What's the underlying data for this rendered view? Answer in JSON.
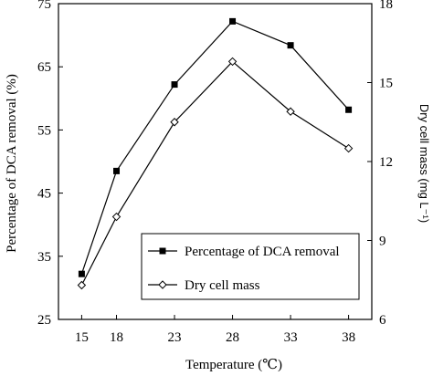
{
  "chart_data": {
    "type": "line",
    "x": [
      15,
      18,
      23,
      28,
      33,
      38
    ],
    "xlabel": "Temperature (℃)",
    "xticks": [
      "15",
      "18",
      "23",
      "28",
      "33",
      "38"
    ],
    "ylabel_left": "Percentage of DCA removal (%)",
    "ylim_left": [
      25,
      75
    ],
    "yticks_left": [
      "25",
      "35",
      "45",
      "55",
      "65",
      "75"
    ],
    "ylabel_right": "Dry cell mass (mg L⁻¹)",
    "ylim_right": [
      6,
      18
    ],
    "yticks_right": [
      "6",
      "9",
      "12",
      "15",
      "18"
    ],
    "grid": false,
    "legend_position": "lower-right",
    "series": [
      {
        "name": "Percentage of DCA removal",
        "axis": "left",
        "marker": "filled-square",
        "values": [
          32.2,
          48.5,
          62.2,
          72.2,
          68.4,
          58.2
        ]
      },
      {
        "name": "Dry cell mass",
        "axis": "right",
        "marker": "open-diamond",
        "values": [
          7.3,
          9.9,
          13.5,
          15.8,
          13.9,
          12.5
        ]
      }
    ],
    "colors": {
      "line": "#000000",
      "background": "#ffffff"
    }
  }
}
